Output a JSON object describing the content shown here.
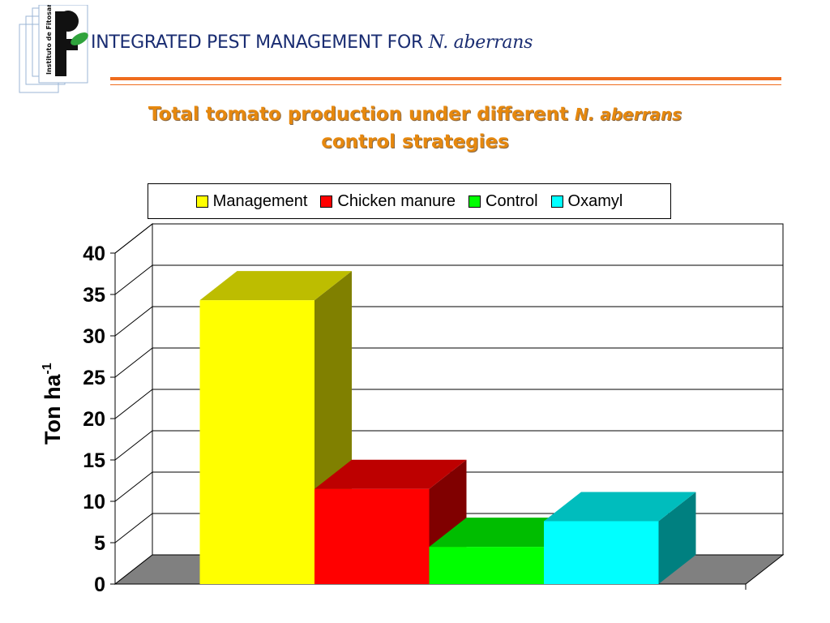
{
  "header": {
    "title_main": "INTEGRATED PEST MANAGEMENT FOR",
    "title_italic": "N. aberrans",
    "logo_text": "Instituto de Fitosanidad"
  },
  "slide": {
    "title_line1": "Total tomato production under different",
    "title_italic": "N. aberrans",
    "title_line2": "control strategies"
  },
  "chart_data": {
    "type": "bar",
    "title": "",
    "xlabel": "",
    "ylabel": "Ton ha",
    "ylabel_sup": "-1",
    "ylim": [
      0,
      40
    ],
    "yticks": [
      0,
      5,
      10,
      15,
      20,
      25,
      30,
      35,
      40
    ],
    "grid": true,
    "legend_position": "top",
    "series": [
      {
        "name": "Management",
        "values": [
          34.3
        ],
        "color": "#ffff00"
      },
      {
        "name": "Chicken manure",
        "values": [
          11.5
        ],
        "color": "#ff0000"
      },
      {
        "name": "Control",
        "values": [
          4.5
        ],
        "color": "#00ff00"
      },
      {
        "name": "Oxamyl",
        "values": [
          7.6
        ],
        "color": "#00ffff"
      }
    ]
  },
  "colors": {
    "header_text": "#1a2d72",
    "accent_rule": "#ef6c1d",
    "slide_title": "#e6880e",
    "floor": "#808080"
  }
}
